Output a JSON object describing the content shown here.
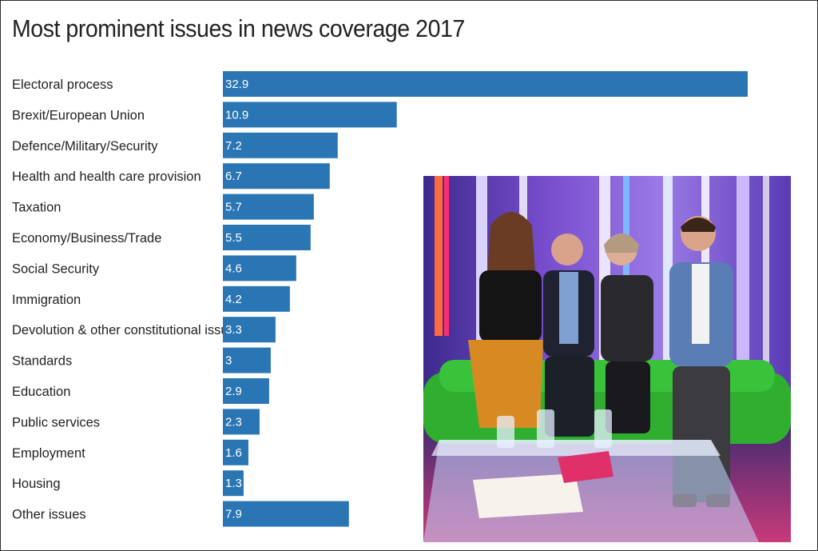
{
  "title": "Most prominent issues in news coverage 2017",
  "chart_data": {
    "type": "bar",
    "orientation": "horizontal",
    "title": "Most prominent issues in news coverage 2017",
    "categories": [
      "Electoral process",
      "Brexit/European Union",
      "Defence/Military/Security",
      "Health and health care provision",
      "Taxation",
      "Economy/Business/Trade",
      "Social Security",
      "Immigration",
      "Devolution & other constitutional issues",
      "Standards",
      "Education",
      "Public services",
      "Employment",
      "Housing",
      "Other issues"
    ],
    "values": [
      32.9,
      10.9,
      7.2,
      6.7,
      5.7,
      5.5,
      4.6,
      4.2,
      3.3,
      3,
      2.9,
      2.3,
      1.6,
      1.3,
      7.9
    ],
    "value_labels": [
      "32.9",
      "10.9",
      "7.2",
      "6.7",
      "5.7",
      "5.5",
      "4.6",
      "4.2",
      "3.3",
      "3",
      "2.9",
      "2.3",
      "1.6",
      "1.3",
      "7.9"
    ],
    "xlim": [
      0,
      32.9
    ],
    "grid": false,
    "bar_color": "#2a75b3"
  },
  "photo": {
    "icon": "tv-studio-photo"
  }
}
